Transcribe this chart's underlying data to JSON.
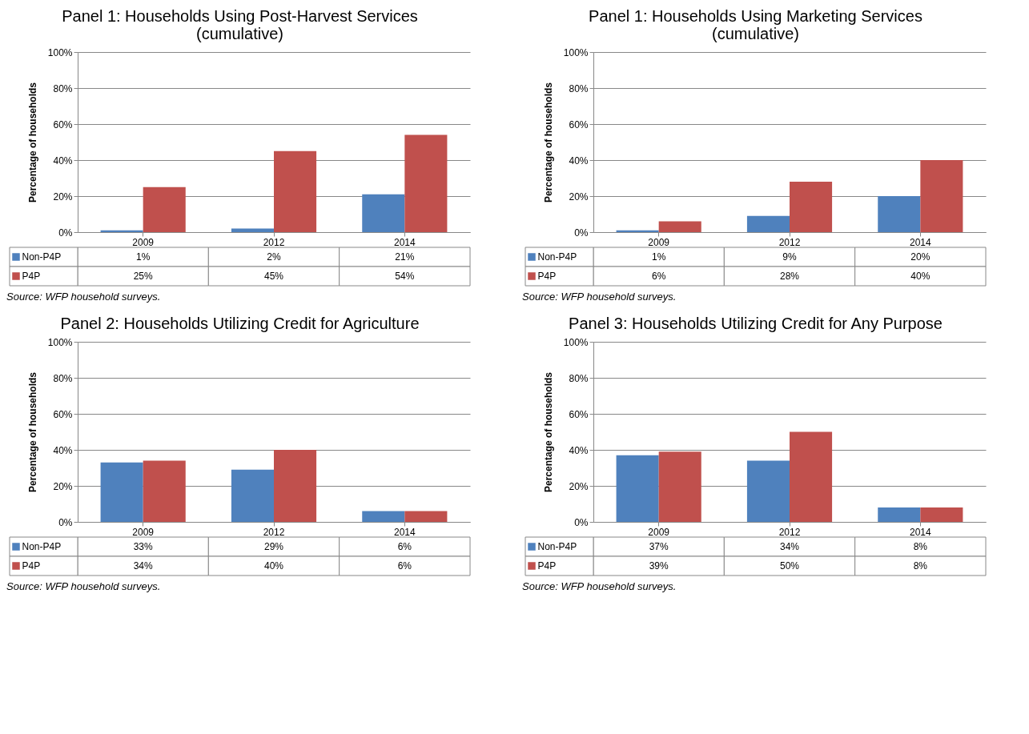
{
  "chart_data": [
    {
      "type": "bar",
      "title": "Panel 1: Households Using Post-Harvest Services (cumulative)",
      "legend": "bottom left",
      "ylabel": "Percentage of households",
      "categories": [
        "2009",
        "2012",
        "2014"
      ],
      "ylim": [
        0,
        100
      ],
      "yticks": [
        {
          "value": 0,
          "label": "0%"
        },
        {
          "value": 20,
          "label": "20%"
        },
        {
          "value": 40,
          "label": "40%"
        },
        {
          "value": 60,
          "label": "60%"
        },
        {
          "value": 80,
          "label": "80%"
        },
        {
          "value": 100,
          "label": "100%"
        }
      ],
      "grid": "y",
      "annotations": [
        "Source: WFP household surveys."
      ],
      "series": [
        {
          "name": "Non-P4P",
          "color": "#4f81bd",
          "values": [
            1,
            2,
            21
          ],
          "value_labels": [
            "1%",
            "2%",
            "21%"
          ]
        },
        {
          "name": "P4P",
          "color": "#c0504d",
          "values": [
            25,
            45,
            54
          ],
          "value_labels": [
            "25%",
            "45%",
            "54%"
          ]
        }
      ]
    },
    {
      "type": "bar",
      "title": "Panel 1: Households Using Marketing Services (cumulative)",
      "legend": "bottom left",
      "ylabel": "Percentage of households",
      "categories": [
        "2009",
        "2012",
        "2014"
      ],
      "ylim": [
        0,
        100
      ],
      "yticks": [
        {
          "value": 0,
          "label": "0%"
        },
        {
          "value": 20,
          "label": "20%"
        },
        {
          "value": 40,
          "label": "40%"
        },
        {
          "value": 60,
          "label": "60%"
        },
        {
          "value": 80,
          "label": "80%"
        },
        {
          "value": 100,
          "label": "100%"
        }
      ],
      "grid": "y",
      "annotations": [
        "Source: WFP household surveys."
      ],
      "series": [
        {
          "name": "Non-P4P",
          "color": "#4f81bd",
          "values": [
            1,
            9,
            20
          ],
          "value_labels": [
            "1%",
            "9%",
            "20%"
          ]
        },
        {
          "name": "P4P",
          "color": "#c0504d",
          "values": [
            6,
            28,
            40
          ],
          "value_labels": [
            "6%",
            "28%",
            "40%"
          ]
        }
      ]
    },
    {
      "type": "bar",
      "title": "Panel 2: Households Utilizing Credit for Agriculture",
      "legend": "bottom left",
      "ylabel": "Percentage of households",
      "categories": [
        "2009",
        "2012",
        "2014"
      ],
      "ylim": [
        0,
        100
      ],
      "yticks": [
        {
          "value": 0,
          "label": "0%"
        },
        {
          "value": 20,
          "label": "20%"
        },
        {
          "value": 40,
          "label": "40%"
        },
        {
          "value": 60,
          "label": "60%"
        },
        {
          "value": 80,
          "label": "80%"
        },
        {
          "value": 100,
          "label": "100%"
        }
      ],
      "grid": "y",
      "annotations": [
        "Source: WFP household surveys."
      ],
      "series": [
        {
          "name": "Non-P4P",
          "color": "#4f81bd",
          "values": [
            33,
            29,
            6
          ],
          "value_labels": [
            "33%",
            "29%",
            "6%"
          ]
        },
        {
          "name": "P4P",
          "color": "#c0504d",
          "values": [
            34,
            40,
            6
          ],
          "value_labels": [
            "34%",
            "40%",
            "6%"
          ]
        }
      ]
    },
    {
      "type": "bar",
      "title": "Panel 3: Households Utilizing Credit for Any Purpose",
      "legend": "bottom left",
      "ylabel": "Percentage of households",
      "categories": [
        "2009",
        "2012",
        "2014"
      ],
      "ylim": [
        0,
        100
      ],
      "yticks": [
        {
          "value": 0,
          "label": "0%"
        },
        {
          "value": 20,
          "label": "20%"
        },
        {
          "value": 40,
          "label": "40%"
        },
        {
          "value": 60,
          "label": "60%"
        },
        {
          "value": 80,
          "label": "80%"
        },
        {
          "value": 100,
          "label": "100%"
        }
      ],
      "grid": "y",
      "annotations": [
        "Source: WFP household surveys."
      ],
      "series": [
        {
          "name": "Non-P4P",
          "color": "#4f81bd",
          "values": [
            37,
            34,
            8
          ],
          "value_labels": [
            "37%",
            "34%",
            "8%"
          ]
        },
        {
          "name": "P4P",
          "color": "#c0504d",
          "values": [
            39,
            50,
            8
          ],
          "value_labels": [
            "39%",
            "50%",
            "8%"
          ]
        }
      ]
    }
  ]
}
